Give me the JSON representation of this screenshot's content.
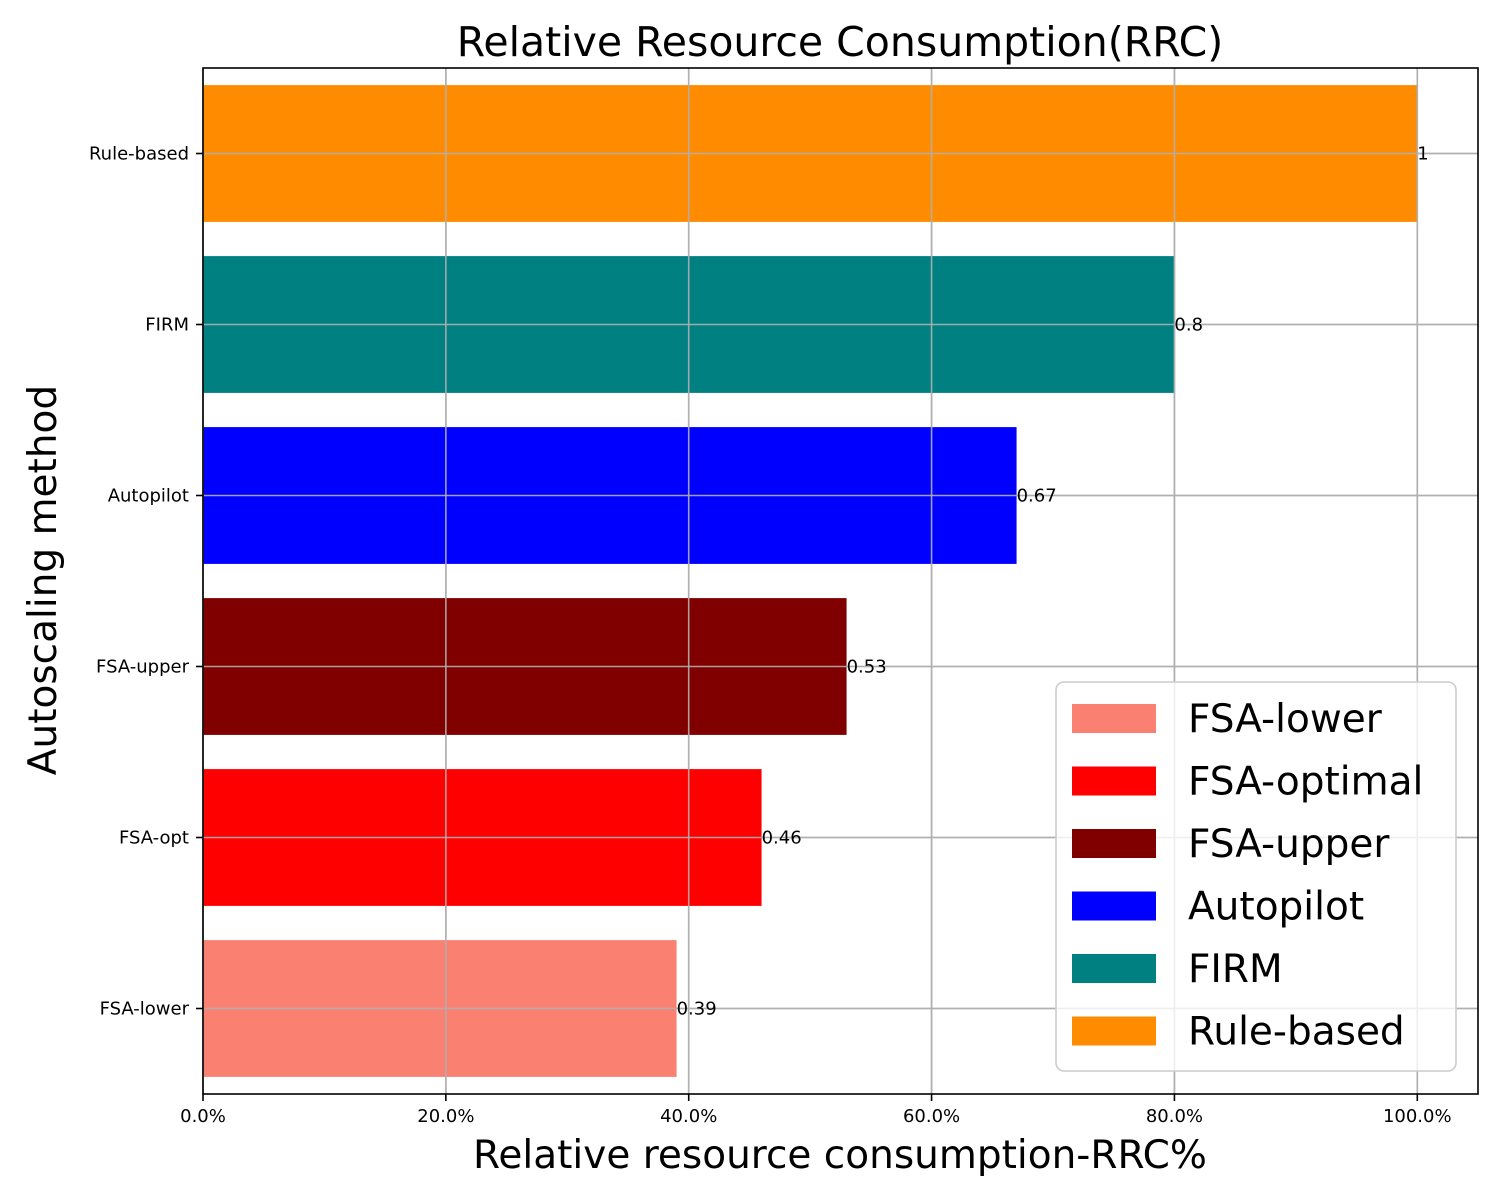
{
  "chart_data": {
    "type": "bar",
    "orientation": "horizontal",
    "title": "Relative Resource Consumption(RRC)",
    "xlabel": "Relative resource consumption-RRC%",
    "ylabel": "Autoscaling method",
    "xlim": [
      0,
      1.05
    ],
    "x_ticks": [
      0,
      0.2,
      0.4,
      0.6,
      0.8,
      1.0
    ],
    "x_tick_labels": [
      "0.0%",
      "20.0%",
      "40.0%",
      "60.0%",
      "80.0%",
      "100.0%"
    ],
    "grid": true,
    "legend_position": "bottom-right",
    "categories": [
      "FSA-lower",
      "FSA-opt",
      "FSA-upper",
      "Autopilot",
      "FIRM",
      "Rule-based"
    ],
    "values": [
      0.39,
      0.46,
      0.53,
      0.67,
      0.8,
      1
    ],
    "value_labels": [
      "0.39",
      "0.46",
      "0.53",
      "0.67",
      "0.8",
      "1"
    ],
    "colors": [
      "#fa8072",
      "#ff0000",
      "#800000",
      "#0000ff",
      "#008080",
      "#ff8c00"
    ],
    "legend": [
      "FSA-lower",
      "FSA-optimal",
      "FSA-upper",
      "Autopilot",
      "FIRM",
      "Rule-based"
    ]
  }
}
